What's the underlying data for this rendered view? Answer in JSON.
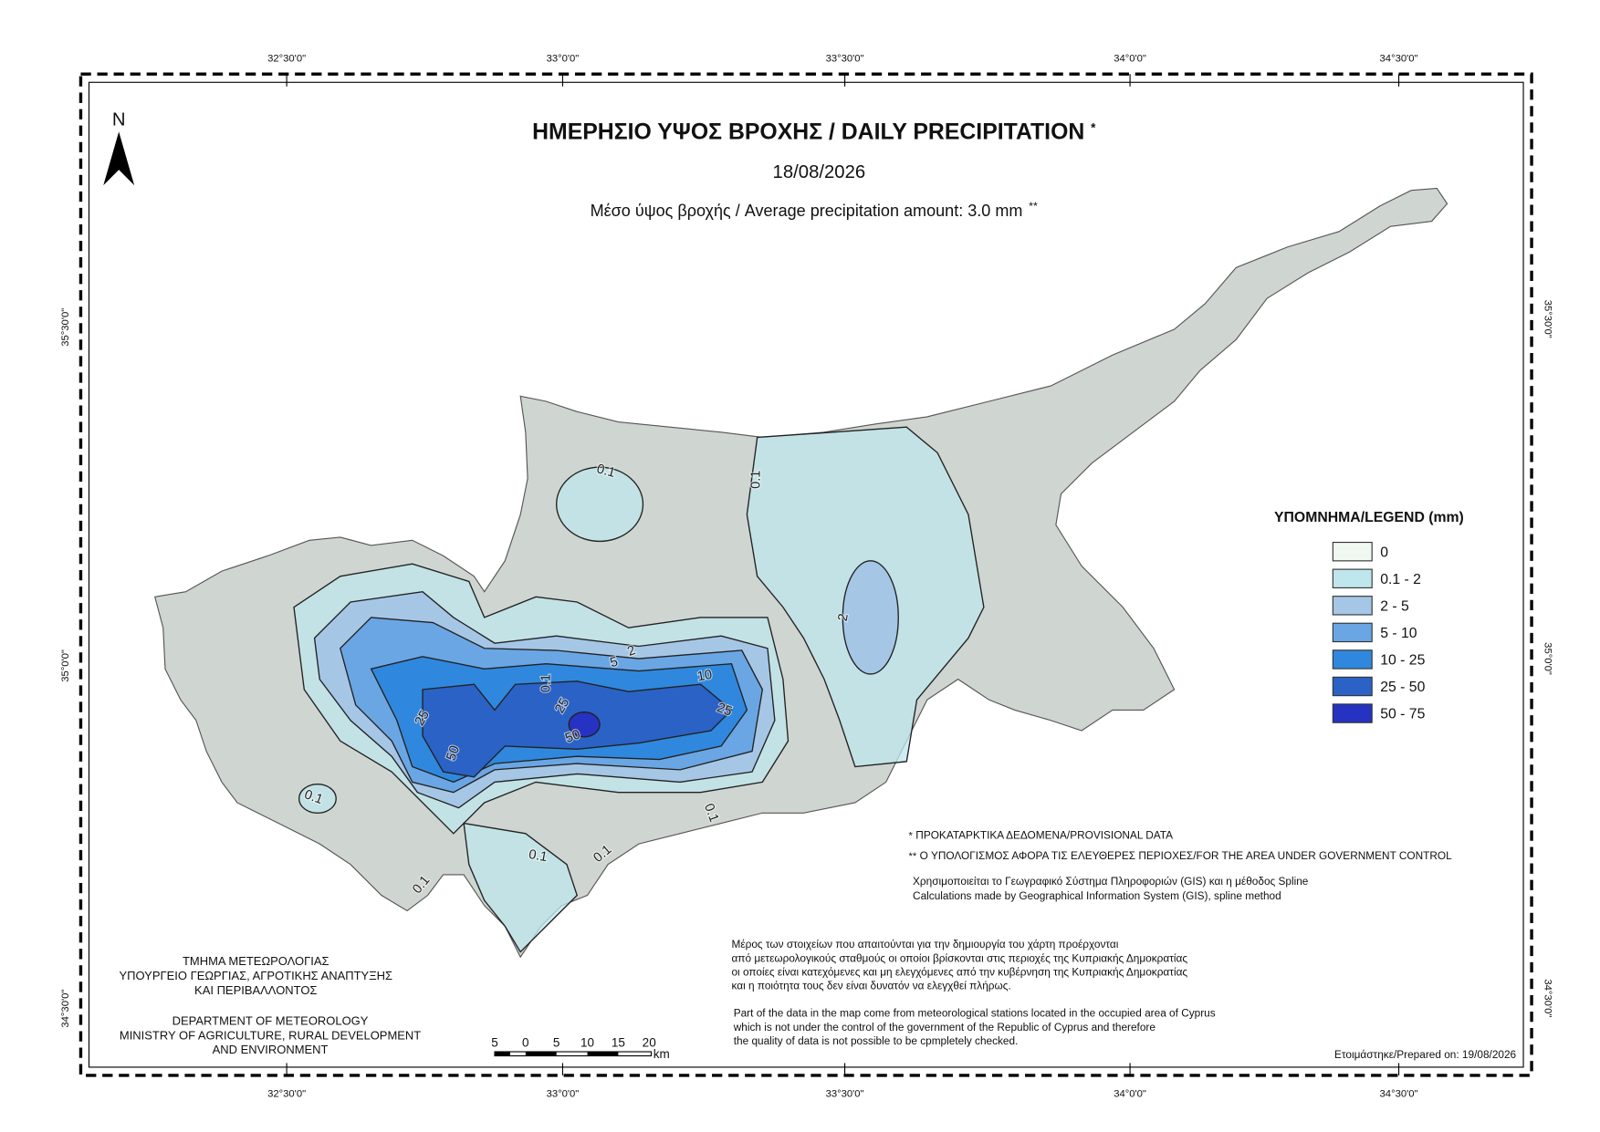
{
  "header": {
    "title": "ΗΜΕΡΗΣΙΟ ΥΨΟΣ ΒΡΟΧΗΣ / DAILY PRECIPITATION",
    "title_mark": "*",
    "date": "18/08/2026",
    "subtitle": "Μέσο ύψος βροχής / Average precipitation amount: 3.0 mm",
    "subtitle_mark": "**"
  },
  "north": "N",
  "graticule": {
    "top": [
      "32°30'0\"",
      "33°0'0\"",
      "33°30'0\"",
      "34°0'0\"",
      "34°30'0\""
    ],
    "bottom": [
      "32°30'0\"",
      "33°0'0\"",
      "33°30'0\"",
      "34°0'0\"",
      "34°30'0\""
    ],
    "left": [
      "35°30'0\"",
      "35°0'0\"",
      "34°30'0\""
    ],
    "right": [
      "35°30'0\"",
      "35°0'0\"",
      "34°30'0\""
    ]
  },
  "legend": {
    "title": "ΥΠΟΜΝΗΜΑ/LEGEND (mm)",
    "items": [
      {
        "label": "0",
        "color": "#f1f8f1"
      },
      {
        "label": "0.1 - 2",
        "color": "#bfe6ec"
      },
      {
        "label": "2 - 5",
        "color": "#a6c6e6"
      },
      {
        "label": "5 - 10",
        "color": "#6aa6e4"
      },
      {
        "label": "10 - 25",
        "color": "#2f88dd"
      },
      {
        "label": "25 - 50",
        "color": "#2a62c6"
      },
      {
        "label": "50 - 75",
        "color": "#2532c2"
      }
    ]
  },
  "contour_labels": [
    "0.1",
    "0.1",
    "2",
    "2",
    "5",
    "10",
    "25",
    "25",
    "25",
    "50",
    "50",
    "0.1",
    "0.1",
    "0.1",
    "0.1",
    "0.1",
    "0.1"
  ],
  "notes": [
    {
      "mark": "*",
      "text": "ΠΡΟΚΑΤΑΡΚΤΙΚΑ ΔΕΔΟΜΕΝΑ/PROVISIONAL DATA"
    },
    {
      "mark": "**",
      "text": "Ο ΥΠΟΛΟΓΙΣΜΟΣ ΑΦΟΡΑ ΤΙΣ ΕΛΕΥΘΕΡΕΣ ΠΕΡΙΟΧΕΣ/FOR THE AREA UNDER GOVERNMENT CONTROL"
    }
  ],
  "method": [
    "Χρησιμοποιείται το Γεωγραφικό Σύστημα Πληροφοριών (GIS) και η μέθοδος Spline",
    "Calculations made by Geographical Information System (GIS), spline method"
  ],
  "disclaimer_gr": [
    "Μέρος των στοιχείων που απαιτούνται για την δημιουργία του χάρτη προέρχονται",
    "από μετεωρολογικούς σταθμούς οι οποίοι βρίσκονται στις περιοχές της Κυπριακής Δημοκρατίας",
    "οι οποίες είναι κατεχόμενες και μη ελεγχόμενες από την κυβέρνηση της Κυπριακής Δημοκρατίας",
    "και η ποιότητα τους δεν είναι δυνατόν να ελεγχθεί πλήρως."
  ],
  "disclaimer_en": [
    "Part of the data in the map come from meteorological stations located in the occupied area of Cyprus",
    "which is not under the control of the government of the Republic of Cyprus and therefore",
    "the quality of data is not possible to be cpmpletely checked."
  ],
  "organization_gr": [
    "ΤΜΗΜΑ ΜΕΤΕΩΡΟΛΟΓΙΑΣ",
    "ΥΠΟΥΡΓΕΙΟ ΓΕΩΡΓΙΑΣ, ΑΓΡΟΤΙΚΗΣ ΑΝΑΠΤΥΞΗΣ",
    "ΚΑΙ ΠΕΡΙΒΑΛΛΟΝΤΟΣ"
  ],
  "organization_en": [
    "DEPARTMENT OF METEOROLOGY",
    "MINISTRY OF AGRICULTURE, RURAL DEVELOPMENT",
    "AND ENVIRONMENT"
  ],
  "scale_bar": {
    "labels": [
      "5",
      "0",
      "5",
      "10",
      "15",
      "20"
    ],
    "unit": "km"
  },
  "prepared": "Ετοιμάστηκε/Prepared on: 19/08/2026"
}
